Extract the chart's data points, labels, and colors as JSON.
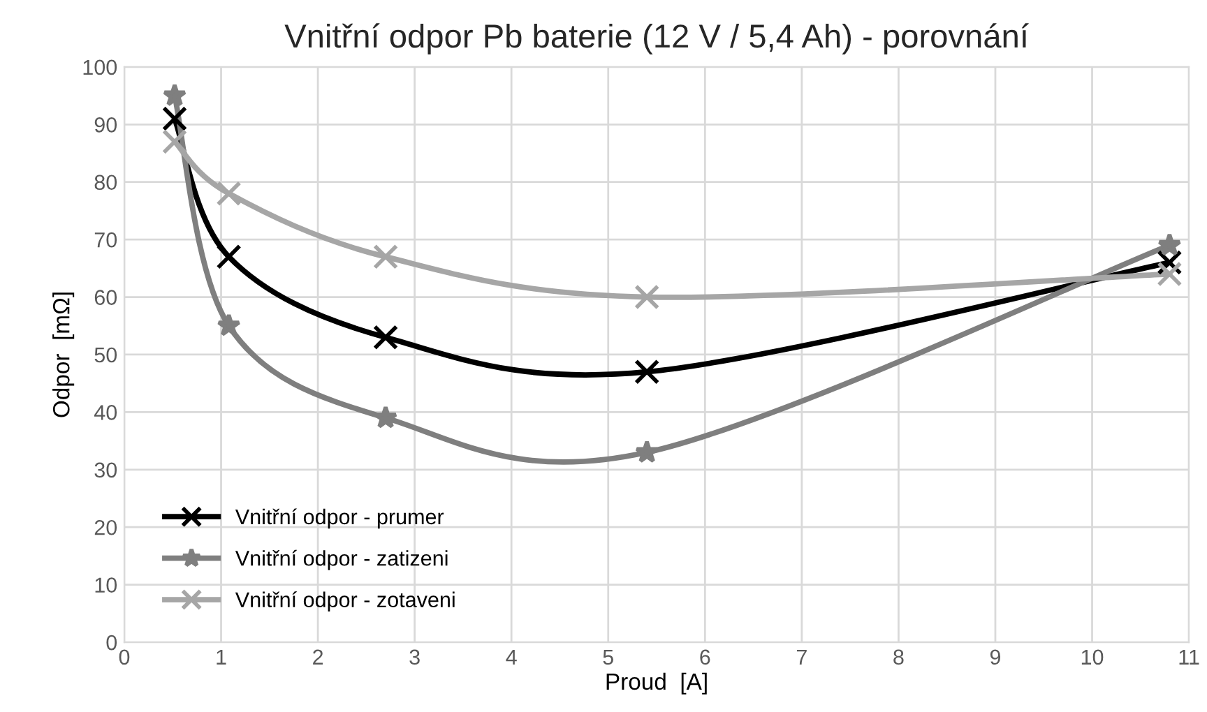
{
  "chart_data": {
    "type": "line",
    "title": "Vnitřní odpor Pb baterie (12 V / 5,4 Ah) - porovnání",
    "xlabel": "Proud  [A]",
    "ylabel": "Odpor  [mΩ]",
    "x": [
      0.52,
      1.08,
      2.7,
      5.4,
      10.8
    ],
    "series": [
      {
        "name": "Vnitřní odpor - prumer",
        "color": "#000000",
        "marker": "cross",
        "values": [
          91,
          67,
          53,
          47,
          66
        ]
      },
      {
        "name": "Vnitřní odpor - zatizeni",
        "color": "#7f7f7f",
        "marker": "star",
        "values": [
          95,
          55,
          39,
          33,
          69
        ]
      },
      {
        "name": "Vnitřní odpor - zotaveni",
        "color": "#a6a6a6",
        "marker": "cross",
        "values": [
          87,
          78,
          67,
          60,
          64
        ]
      }
    ],
    "xlim": [
      0,
      11
    ],
    "xticks": [
      0,
      1,
      2,
      3,
      4,
      5,
      6,
      7,
      8,
      9,
      10,
      11
    ],
    "ylim": [
      0,
      100
    ],
    "yticks": [
      0,
      10,
      20,
      30,
      40,
      50,
      60,
      70,
      80,
      90,
      100
    ],
    "grid": true,
    "legend": "bottom left",
    "line_style": "solid"
  }
}
